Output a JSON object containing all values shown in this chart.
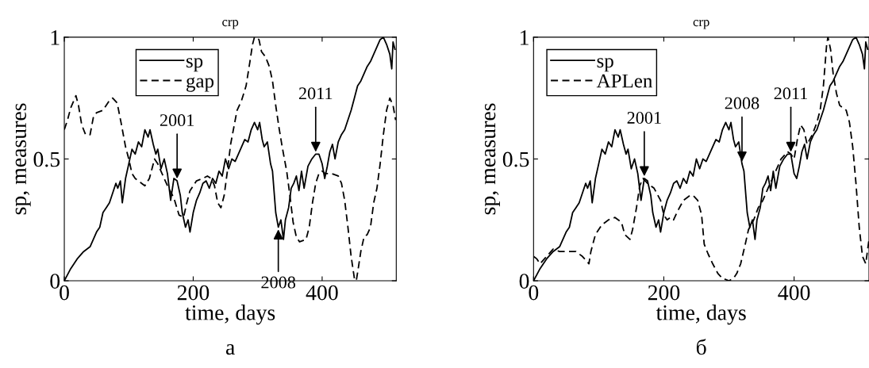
{
  "chart_data": [
    {
      "type": "line",
      "title": "crp",
      "xlabel": "time, days",
      "ylabel": "sp, measures",
      "xlim": [
        0,
        515
      ],
      "ylim": [
        0,
        1
      ],
      "xticks": [
        0,
        200,
        400
      ],
      "yticks": [
        0,
        0.5,
        1
      ],
      "grid": false,
      "legend": "top",
      "annotations": [
        {
          "text": "2001",
          "x": 175,
          "y": 0.41
        },
        {
          "text": "2008",
          "x": 332,
          "y": 0.22
        },
        {
          "text": "2011",
          "x": 390,
          "y": 0.52
        },
        "а"
      ],
      "series": [
        {
          "name": "sp",
          "color": "#000000",
          "line_style": "solid",
          "x": [
            0,
            10,
            20,
            30,
            40,
            50,
            55,
            60,
            65,
            70,
            75,
            80,
            83,
            87,
            90,
            95,
            100,
            105,
            110,
            115,
            120,
            125,
            130,
            133,
            138,
            142,
            145,
            150,
            155,
            160,
            165,
            170,
            175,
            180,
            183,
            188,
            192,
            195,
            200,
            205,
            210,
            215,
            220,
            225,
            230,
            235,
            240,
            245,
            250,
            255,
            260,
            265,
            270,
            275,
            280,
            285,
            290,
            295,
            300,
            303,
            307,
            310,
            315,
            320,
            323,
            328,
            332,
            336,
            340,
            343,
            348,
            352,
            356,
            360,
            364,
            368,
            372,
            378,
            384,
            390,
            395,
            400,
            404,
            408,
            412,
            416,
            420,
            425,
            430,
            435,
            440,
            445,
            450,
            455,
            460,
            465,
            470,
            475,
            480,
            485,
            490,
            495,
            500,
            505,
            508,
            510,
            513
          ],
          "values": [
            0,
            0.05,
            0.09,
            0.12,
            0.14,
            0.2,
            0.22,
            0.28,
            0.3,
            0.32,
            0.36,
            0.4,
            0.38,
            0.41,
            0.32,
            0.42,
            0.48,
            0.54,
            0.52,
            0.57,
            0.55,
            0.62,
            0.59,
            0.62,
            0.56,
            0.52,
            0.54,
            0.46,
            0.5,
            0.44,
            0.33,
            0.42,
            0.41,
            0.35,
            0.28,
            0.22,
            0.25,
            0.2,
            0.28,
            0.33,
            0.36,
            0.4,
            0.41,
            0.38,
            0.42,
            0.4,
            0.45,
            0.43,
            0.5,
            0.46,
            0.5,
            0.49,
            0.52,
            0.55,
            0.58,
            0.57,
            0.62,
            0.65,
            0.62,
            0.65,
            0.58,
            0.55,
            0.57,
            0.48,
            0.45,
            0.28,
            0.22,
            0.25,
            0.17,
            0.25,
            0.3,
            0.38,
            0.4,
            0.43,
            0.37,
            0.45,
            0.38,
            0.47,
            0.5,
            0.52,
            0.52,
            0.48,
            0.42,
            0.47,
            0.53,
            0.56,
            0.5,
            0.57,
            0.6,
            0.62,
            0.66,
            0.7,
            0.75,
            0.8,
            0.82,
            0.85,
            0.88,
            0.9,
            0.93,
            0.96,
            0.99,
            1.0,
            0.97,
            0.93,
            0.87,
            0.98,
            0.95
          ]
        },
        {
          "name": "gap",
          "color": "#000000",
          "line_style": "dashed",
          "x": [
            0,
            5,
            10,
            18,
            22,
            27,
            33,
            40,
            45,
            50,
            60,
            70,
            75,
            82,
            88,
            95,
            100,
            105,
            110,
            120,
            125,
            132,
            140,
            145,
            150,
            160,
            170,
            178,
            185,
            190,
            195,
            205,
            215,
            222,
            228,
            233,
            238,
            243,
            248,
            253,
            258,
            263,
            268,
            275,
            282,
            288,
            292,
            295,
            302,
            306,
            312,
            318,
            323,
            328,
            333,
            338,
            345,
            350,
            355,
            360,
            365,
            375,
            380,
            385,
            390,
            395,
            400,
            405,
            415,
            425,
            430,
            435,
            440,
            445,
            450,
            453,
            456,
            460,
            465,
            470,
            475,
            480,
            485,
            490,
            495,
            500,
            505,
            510,
            514
          ],
          "values": [
            0.62,
            0.66,
            0.71,
            0.76,
            0.72,
            0.64,
            0.6,
            0.6,
            0.67,
            0.69,
            0.7,
            0.74,
            0.75,
            0.73,
            0.65,
            0.55,
            0.5,
            0.44,
            0.42,
            0.4,
            0.39,
            0.42,
            0.5,
            0.48,
            0.45,
            0.39,
            0.34,
            0.27,
            0.26,
            0.32,
            0.37,
            0.41,
            0.42,
            0.43,
            0.42,
            0.39,
            0.32,
            0.3,
            0.35,
            0.45,
            0.56,
            0.63,
            0.7,
            0.74,
            0.8,
            0.9,
            0.97,
            1.0,
            0.99,
            0.94,
            0.92,
            0.88,
            0.82,
            0.72,
            0.63,
            0.55,
            0.45,
            0.35,
            0.24,
            0.18,
            0.16,
            0.17,
            0.22,
            0.32,
            0.4,
            0.44,
            0.45,
            0.44,
            0.44,
            0.43,
            0.4,
            0.33,
            0.22,
            0.1,
            0.01,
            0.0,
            0.05,
            0.12,
            0.18,
            0.19,
            0.22,
            0.32,
            0.38,
            0.48,
            0.6,
            0.7,
            0.75,
            0.72,
            0.66
          ]
        }
      ]
    },
    {
      "type": "line",
      "title": "crp",
      "xlabel": "time, days",
      "ylabel": "sp, measures",
      "xlim": [
        0,
        515
      ],
      "ylim": [
        0,
        1
      ],
      "xticks": [
        0,
        200,
        400
      ],
      "yticks": [
        0,
        0.5,
        1
      ],
      "grid": false,
      "legend": "top left",
      "annotations": [
        {
          "text": "2001",
          "x": 170,
          "y": 0.42
        },
        {
          "text": "2008",
          "x": 320,
          "y": 0.48
        },
        {
          "text": "2011",
          "x": 395,
          "y": 0.52
        },
        "б"
      ],
      "series": [
        {
          "name": "sp",
          "color": "#000000",
          "line_style": "solid",
          "x": [
            0,
            10,
            20,
            30,
            40,
            50,
            55,
            60,
            65,
            70,
            75,
            80,
            83,
            87,
            90,
            95,
            100,
            105,
            110,
            115,
            120,
            125,
            130,
            133,
            138,
            142,
            145,
            150,
            155,
            160,
            165,
            170,
            175,
            180,
            183,
            188,
            192,
            195,
            200,
            205,
            210,
            215,
            220,
            225,
            230,
            235,
            240,
            245,
            250,
            255,
            260,
            265,
            270,
            275,
            280,
            285,
            290,
            295,
            300,
            303,
            307,
            310,
            315,
            320,
            323,
            328,
            332,
            336,
            340,
            343,
            348,
            352,
            356,
            360,
            364,
            368,
            372,
            378,
            384,
            390,
            395,
            400,
            404,
            408,
            412,
            416,
            420,
            425,
            430,
            435,
            440,
            445,
            450,
            455,
            460,
            465,
            470,
            475,
            480,
            485,
            490,
            495,
            500,
            505,
            508,
            510,
            513
          ],
          "values": [
            0,
            0.05,
            0.09,
            0.12,
            0.14,
            0.2,
            0.22,
            0.28,
            0.3,
            0.32,
            0.36,
            0.4,
            0.38,
            0.41,
            0.32,
            0.42,
            0.48,
            0.54,
            0.52,
            0.57,
            0.55,
            0.62,
            0.59,
            0.62,
            0.56,
            0.52,
            0.54,
            0.46,
            0.5,
            0.44,
            0.33,
            0.42,
            0.41,
            0.35,
            0.28,
            0.22,
            0.25,
            0.2,
            0.28,
            0.33,
            0.36,
            0.4,
            0.41,
            0.38,
            0.42,
            0.4,
            0.45,
            0.43,
            0.5,
            0.46,
            0.5,
            0.49,
            0.52,
            0.55,
            0.58,
            0.57,
            0.62,
            0.65,
            0.62,
            0.65,
            0.58,
            0.55,
            0.57,
            0.48,
            0.45,
            0.28,
            0.22,
            0.25,
            0.17,
            0.25,
            0.3,
            0.38,
            0.4,
            0.43,
            0.37,
            0.45,
            0.38,
            0.47,
            0.5,
            0.52,
            0.52,
            0.44,
            0.42,
            0.47,
            0.53,
            0.56,
            0.5,
            0.57,
            0.6,
            0.62,
            0.66,
            0.7,
            0.75,
            0.8,
            0.82,
            0.85,
            0.88,
            0.9,
            0.93,
            0.96,
            0.99,
            1.0,
            0.97,
            0.93,
            0.87,
            0.98,
            0.95
          ]
        },
        {
          "name": "APLen",
          "color": "#000000",
          "line_style": "dashed",
          "x": [
            0,
            5,
            10,
            20,
            30,
            40,
            50,
            65,
            75,
            85,
            88,
            95,
            105,
            115,
            125,
            130,
            135,
            140,
            148,
            152,
            158,
            163,
            168,
            175,
            185,
            195,
            200,
            205,
            210,
            215,
            220,
            230,
            240,
            245,
            252,
            258,
            262,
            268,
            275,
            283,
            290,
            300,
            307,
            312,
            318,
            325,
            330,
            338,
            345,
            352,
            360,
            370,
            380,
            390,
            395,
            400,
            405,
            410,
            415,
            420,
            428,
            435,
            440,
            445,
            450,
            452,
            456,
            460,
            465,
            470,
            475,
            480,
            485,
            490,
            495,
            500,
            505,
            510,
            515
          ],
          "values": [
            0.1,
            0.09,
            0.07,
            0.1,
            0.13,
            0.12,
            0.12,
            0.12,
            0.1,
            0.07,
            0.12,
            0.19,
            0.23,
            0.25,
            0.26,
            0.25,
            0.24,
            0.19,
            0.17,
            0.21,
            0.3,
            0.39,
            0.42,
            0.4,
            0.38,
            0.33,
            0.27,
            0.25,
            0.26,
            0.25,
            0.28,
            0.33,
            0.35,
            0.35,
            0.33,
            0.27,
            0.15,
            0.11,
            0.07,
            0.03,
            0.01,
            0.0,
            0.01,
            0.03,
            0.07,
            0.15,
            0.21,
            0.25,
            0.3,
            0.33,
            0.38,
            0.44,
            0.5,
            0.53,
            0.52,
            0.5,
            0.58,
            0.64,
            0.62,
            0.56,
            0.6,
            0.65,
            0.7,
            0.8,
            0.97,
            1.0,
            0.95,
            0.85,
            0.77,
            0.72,
            0.71,
            0.7,
            0.65,
            0.55,
            0.4,
            0.22,
            0.1,
            0.07,
            0.17
          ]
        }
      ]
    }
  ]
}
